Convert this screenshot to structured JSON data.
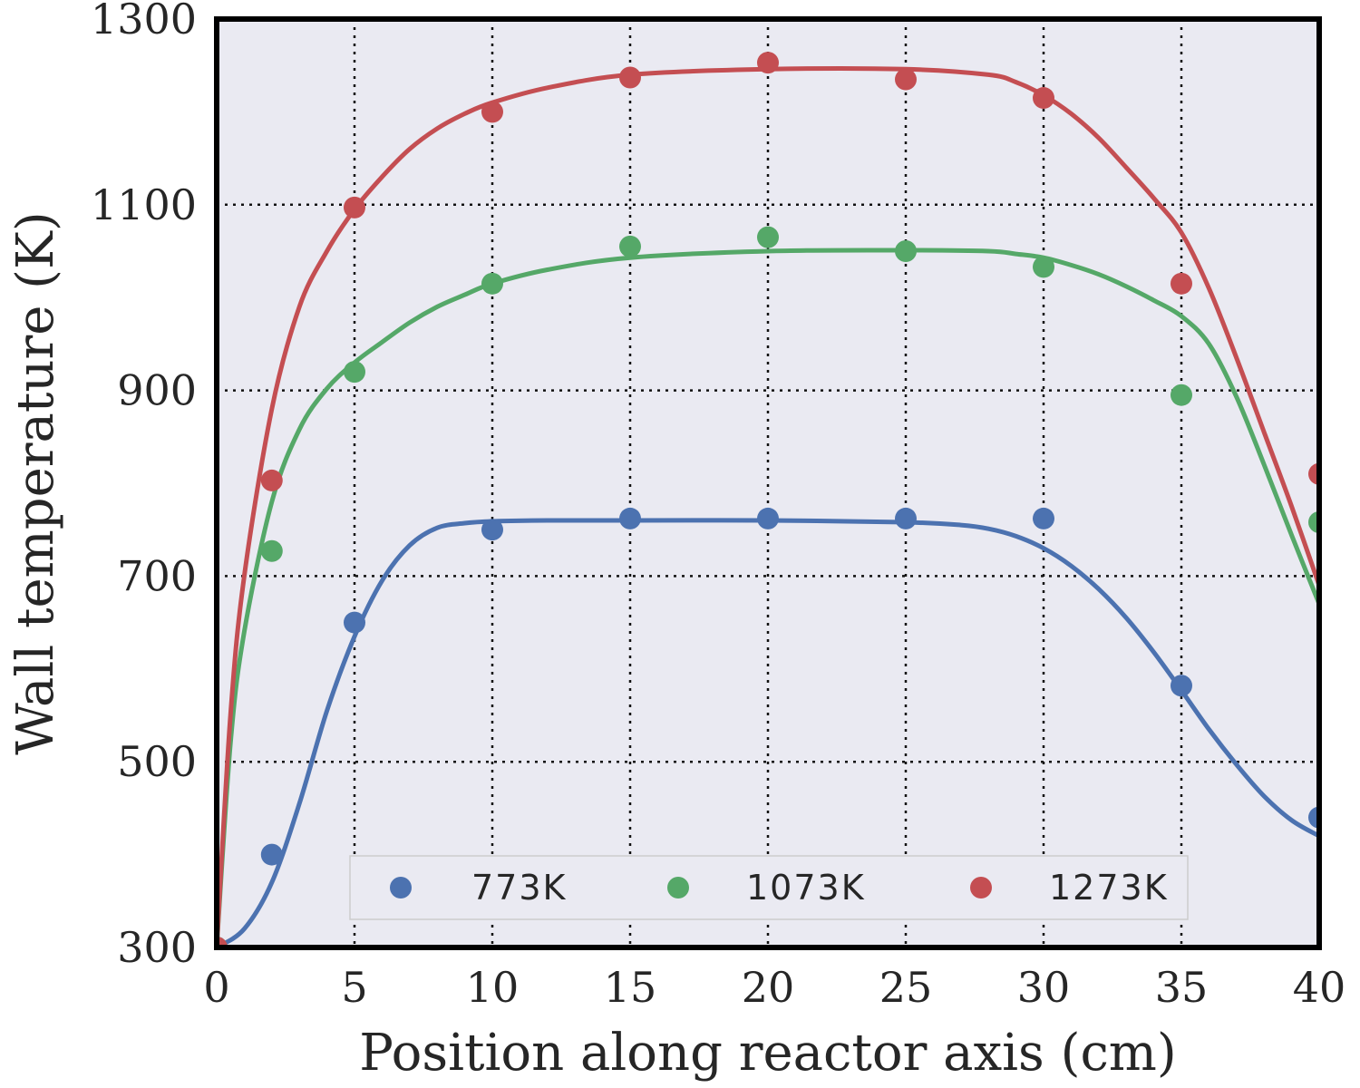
{
  "chart_data": {
    "type": "line",
    "xlabel": "Position along reactor axis (cm)",
    "ylabel": "Wall temperature (K)",
    "xlim": [
      0,
      40
    ],
    "ylim": [
      300,
      1300
    ],
    "xticks": [
      0,
      5,
      10,
      15,
      20,
      25,
      30,
      35,
      40
    ],
    "yticks": [
      300,
      500,
      700,
      900,
      1100,
      1300
    ],
    "grid": true,
    "grid_style": "dotted",
    "legend_position": "bottom-center",
    "background": "#EAEAF2",
    "series": [
      {
        "name": "773K",
        "color": "#4C72B0",
        "points_x": [
          0,
          2,
          5,
          10,
          15,
          20,
          25,
          30,
          35,
          40
        ],
        "points_y": [
          300,
          400,
          650,
          750,
          762,
          762,
          762,
          762,
          582,
          440
        ],
        "curve_x": [
          0,
          1,
          2,
          3,
          4,
          5,
          6,
          7,
          8,
          9,
          10,
          12,
          15,
          20,
          25,
          27,
          28,
          29,
          30,
          31,
          32,
          33,
          34,
          35,
          36,
          37,
          38,
          39,
          40
        ],
        "curve_y": [
          300,
          320,
          370,
          455,
          555,
          635,
          695,
          733,
          752,
          757,
          759,
          760,
          760,
          760,
          758,
          755,
          751,
          743,
          730,
          711,
          686,
          655,
          618,
          577,
          535,
          497,
          463,
          437,
          420
        ]
      },
      {
        "name": "1073K",
        "color": "#55A868",
        "points_x": [
          0,
          2,
          5,
          10,
          15,
          20,
          25,
          30,
          35,
          40
        ],
        "points_y": [
          300,
          727,
          920,
          1015,
          1055,
          1065,
          1050,
          1033,
          895,
          758
        ],
        "curve_x": [
          0,
          0.5,
          1,
          2,
          3,
          4,
          5,
          6,
          7,
          8,
          9,
          10,
          12,
          15,
          20,
          25,
          28,
          29,
          30,
          31,
          32,
          33,
          34,
          35,
          36,
          37,
          38,
          39,
          40
        ],
        "curve_y": [
          300,
          520,
          640,
          780,
          858,
          902,
          930,
          952,
          973,
          990,
          1003,
          1015,
          1030,
          1043,
          1050,
          1051,
          1050,
          1047,
          1043,
          1035,
          1025,
          1012,
          997,
          980,
          950,
          893,
          820,
          744,
          670
        ]
      },
      {
        "name": "1273K",
        "color": "#C44E52",
        "points_x": [
          0,
          2,
          5,
          10,
          15,
          20,
          25,
          30,
          35,
          40
        ],
        "points_y": [
          300,
          803,
          1097,
          1200,
          1237,
          1253,
          1235,
          1215,
          1015,
          810
        ],
        "curve_x": [
          0,
          0.5,
          1,
          2,
          3,
          4,
          5,
          6,
          7,
          8,
          9,
          10,
          12,
          15,
          20,
          25,
          28,
          29,
          30,
          31,
          32,
          33,
          34,
          35,
          36,
          37,
          38,
          39,
          40
        ],
        "curve_y": [
          300,
          550,
          700,
          880,
          990,
          1050,
          1095,
          1130,
          1160,
          1182,
          1198,
          1210,
          1226,
          1240,
          1246,
          1246,
          1240,
          1232,
          1218,
          1198,
          1172,
          1140,
          1107,
          1070,
          1010,
          935,
          855,
          775,
          690
        ]
      }
    ]
  }
}
